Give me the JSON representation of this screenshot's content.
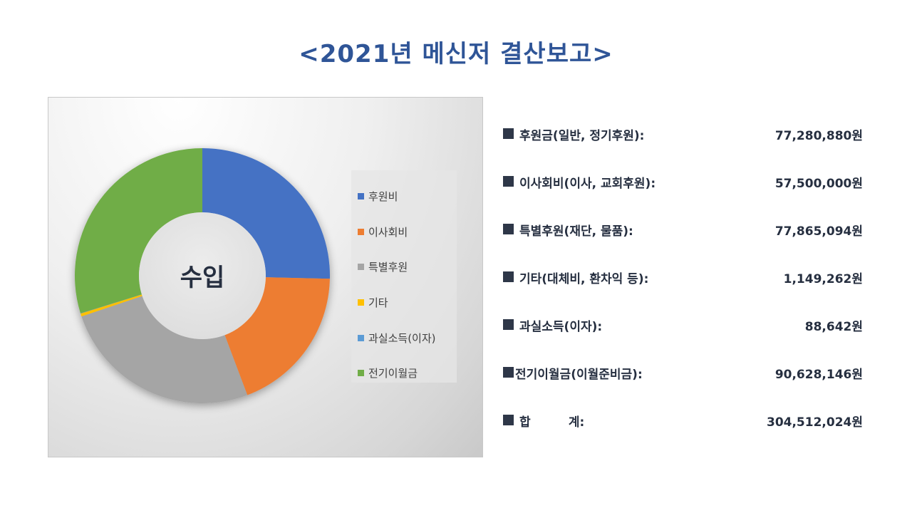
{
  "title": "<2021년 메신저 결산보고>",
  "chart": {
    "center_label": "수입",
    "start_angle_deg": 0,
    "direction": "clockwise",
    "inner_radius_ratio": 0.5
  },
  "chart_data": {
    "type": "pie",
    "subtype": "donut",
    "title": "수입",
    "categories": [
      "후원비",
      "이사회비",
      "특별후원",
      "기타",
      "과실소득(이자)",
      "전기이월금"
    ],
    "values": [
      77280880,
      57500000,
      77865094,
      1149262,
      88642,
      90628146
    ],
    "colors": [
      "#4472c4",
      "#ed7d31",
      "#a5a5a5",
      "#ffc000",
      "#5b9bd5",
      "#70ad47"
    ],
    "unit": "원",
    "legend_position": "right"
  },
  "legend": {
    "items": [
      {
        "label": "후원비",
        "color": "#4472c4"
      },
      {
        "label": "이사회비",
        "color": "#ed7d31"
      },
      {
        "label": "특별후원",
        "color": "#a5a5a5"
      },
      {
        "label": "기타",
        "color": "#ffc000"
      },
      {
        "label": "과실소득(이자)",
        "color": "#5b9bd5"
      },
      {
        "label": "전기이월금",
        "color": "#70ad47"
      }
    ]
  },
  "summary": {
    "bullet_icon": "black-square",
    "rows": [
      {
        "label": "후원금(일반, 정기후원):",
        "amount": "77,280,880원"
      },
      {
        "label": "이사회비(이사, 교회후원):",
        "amount": "57,500,000원"
      },
      {
        "label": "특별후원(재단, 물품):",
        "amount": "77,865,094원"
      },
      {
        "label": "기타(대체비, 환차익 등):",
        "amount": "1,149,262원"
      },
      {
        "label": "과실소득(이자):",
        "amount": "88,642원"
      },
      {
        "label": "전기이월금(이월준비금):",
        "amount": "90,628,146원"
      },
      {
        "label": "합         계:",
        "amount": "304,512,024원"
      }
    ]
  }
}
